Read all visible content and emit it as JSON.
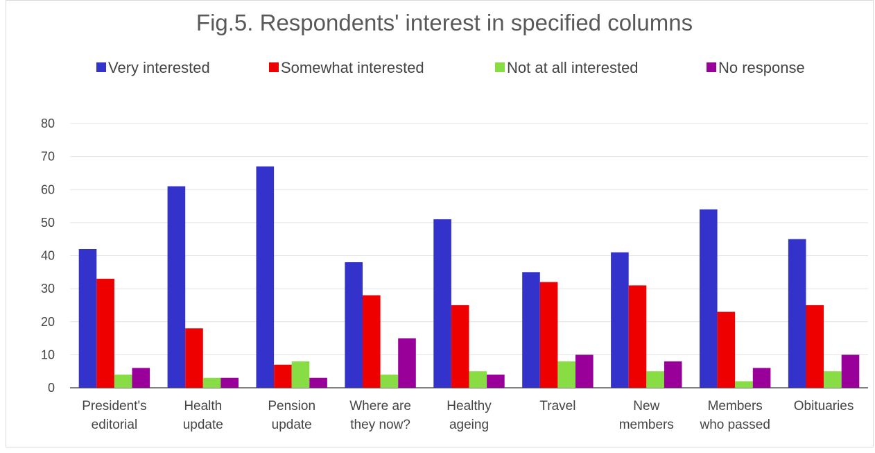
{
  "chart_data": {
    "type": "bar",
    "title": "Fig.5. Respondents' interest in specified columns",
    "xlabel": "",
    "ylabel": "",
    "ylim": [
      0,
      80
    ],
    "yticks": [
      "0",
      "10",
      "20",
      "30",
      "40",
      "50",
      "60",
      "70",
      "80"
    ],
    "grid": true,
    "legend_position": "top",
    "categories": [
      [
        "President's",
        "editorial"
      ],
      [
        "Health",
        "update"
      ],
      [
        "Pension",
        "update"
      ],
      [
        "Where are",
        "they now?"
      ],
      [
        "Healthy",
        "ageing"
      ],
      [
        "Travel"
      ],
      [
        "New",
        "members"
      ],
      [
        "Members",
        "who passed"
      ],
      [
        "Obituaries"
      ]
    ],
    "series": [
      {
        "name": "Very interested",
        "color": "#3333cc",
        "values": [
          42,
          61,
          67,
          38,
          51,
          35,
          41,
          54,
          45
        ]
      },
      {
        "name": "Somewhat interested",
        "color": "#ee0000",
        "values": [
          33,
          18,
          7,
          28,
          25,
          32,
          31,
          23,
          25
        ]
      },
      {
        "name": "Not at all interested",
        "color": "#88dd44",
        "values": [
          4,
          3,
          8,
          4,
          5,
          8,
          5,
          2,
          5
        ]
      },
      {
        "name": "No response",
        "color": "#990099",
        "values": [
          6,
          3,
          3,
          15,
          4,
          10,
          8,
          6,
          10
        ]
      }
    ]
  }
}
